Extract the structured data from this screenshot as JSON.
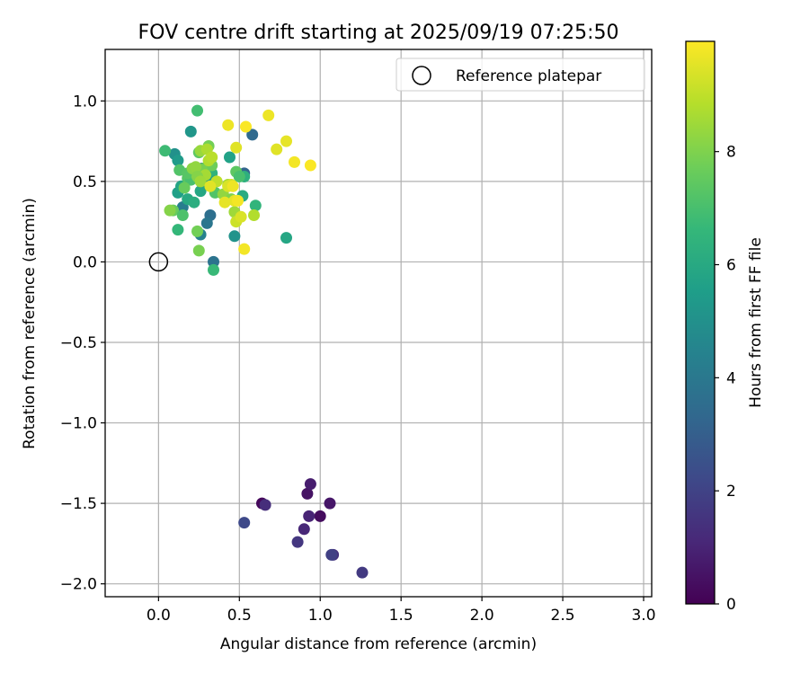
{
  "chart_data": {
    "type": "scatter",
    "title": "FOV centre drift starting at 2025/09/19 07:25:50",
    "xlabel": "Angular distance from reference (arcmin)",
    "ylabel": "Rotation from reference (arcmin)",
    "xlim": [
      -0.33,
      3.05
    ],
    "ylim": [
      -2.08,
      1.32
    ],
    "xticks": [
      0.0,
      0.5,
      1.0,
      1.5,
      2.0,
      2.5,
      3.0
    ],
    "xtick_labels": [
      "0.0",
      "0.5",
      "1.0",
      "1.5",
      "2.0",
      "2.5",
      "3.0"
    ],
    "yticks": [
      -2.0,
      -1.5,
      -1.0,
      -0.5,
      0.0,
      0.5,
      1.0
    ],
    "ytick_labels": [
      "−2.0",
      "−1.5",
      "−1.0",
      "−0.5",
      "0.0",
      "0.5",
      "1.0"
    ],
    "grid": true,
    "legend": {
      "location": "upper right",
      "entries": [
        "Reference platepar"
      ]
    },
    "reference_point": {
      "x": 0.0,
      "y": 0.0,
      "label": "Reference platepar",
      "marker": "open-circle"
    },
    "colorbar": {
      "label": "Hours from first FF file",
      "colormap": "viridis",
      "range": [
        0,
        9.95
      ],
      "ticks": [
        0,
        2,
        4,
        6,
        8
      ],
      "tick_labels": [
        "0",
        "2",
        "4",
        "6",
        "8"
      ],
      "colors": [
        "#440154",
        "#482878",
        "#3e4989",
        "#31688e",
        "#26828e",
        "#1f9e89",
        "#35b779",
        "#6ece58",
        "#b5de2b",
        "#fde725"
      ]
    },
    "series": [
      {
        "name": "FOV centre drift",
        "x": [
          0.64,
          0.92,
          0.94,
          1.0,
          1.06,
          0.93,
          0.66,
          0.9,
          0.86,
          1.08,
          1.07,
          1.26,
          0.53,
          0.34,
          0.32,
          0.58,
          0.53,
          0.27,
          0.3,
          0.26,
          0.15,
          0.1,
          0.12,
          0.12,
          0.14,
          0.2,
          0.18,
          0.22,
          0.26,
          0.29,
          0.33,
          0.35,
          0.44,
          0.47,
          0.52,
          0.53,
          0.6,
          0.79,
          0.04,
          0.09,
          0.13,
          0.15,
          0.18,
          0.2,
          0.24,
          0.25,
          0.28,
          0.31,
          0.33,
          0.34,
          0.27,
          0.07,
          0.16,
          0.25,
          0.35,
          0.4,
          0.45,
          0.48,
          0.5,
          0.47,
          0.12,
          0.18,
          0.21,
          0.24,
          0.26,
          0.29,
          0.3,
          0.31,
          0.33,
          0.36,
          0.23,
          0.24,
          0.43,
          0.59,
          0.48,
          0.26,
          0.41,
          0.43,
          0.48,
          0.51,
          0.45,
          0.47,
          0.49,
          0.54,
          0.68,
          0.73,
          0.79,
          0.84,
          0.94,
          0.53,
          0.32,
          0.43,
          0.46
        ],
        "y": [
          -1.5,
          -1.44,
          -1.38,
          -1.58,
          -1.5,
          -1.58,
          -1.51,
          -1.66,
          -1.74,
          -1.82,
          -1.82,
          -1.93,
          -1.62,
          0.0,
          0.29,
          0.79,
          0.55,
          0.58,
          0.24,
          0.17,
          0.34,
          0.67,
          0.63,
          0.43,
          0.47,
          0.81,
          0.39,
          0.37,
          0.44,
          0.5,
          0.55,
          0.5,
          0.65,
          0.16,
          0.41,
          0.53,
          0.35,
          0.15,
          0.69,
          0.32,
          0.57,
          0.29,
          0.52,
          0.51,
          0.94,
          0.68,
          0.58,
          0.72,
          0.6,
          -0.05,
          0.57,
          0.32,
          0.46,
          0.07,
          0.43,
          0.42,
          0.39,
          0.56,
          0.53,
          0.31,
          0.2,
          0.55,
          0.58,
          0.19,
          0.69,
          0.54,
          0.7,
          0.63,
          0.65,
          0.5,
          0.59,
          0.53,
          0.48,
          0.29,
          0.25,
          0.5,
          0.37,
          0.85,
          0.71,
          0.28,
          0.48,
          0.38,
          0.38,
          0.84,
          0.91,
          0.7,
          0.75,
          0.62,
          0.6,
          0.08,
          0.47,
          0.47,
          0.47
        ],
        "hours": [
          0.2,
          0.5,
          0.8,
          0.3,
          0.6,
          1.0,
          1.3,
          1.1,
          1.6,
          1.4,
          1.9,
          1.7,
          2.2,
          3.8,
          3.6,
          3.4,
          3.2,
          3.0,
          3.9,
          4.4,
          4.2,
          5.0,
          5.4,
          5.6,
          5.8,
          5.2,
          6.0,
          6.2,
          5.9,
          5.3,
          6.4,
          5.5,
          5.7,
          5.1,
          6.1,
          6.3,
          6.5,
          5.9,
          6.8,
          7.6,
          7.2,
          7.1,
          7.3,
          7.0,
          6.9,
          7.4,
          7.5,
          7.8,
          7.7,
          6.7,
          7.9,
          8.1,
          7.6,
          7.9,
          7.2,
          8.3,
          8.0,
          7.4,
          7.0,
          8.5,
          6.6,
          7.3,
          8.2,
          7.8,
          8.4,
          8.6,
          8.7,
          8.8,
          8.9,
          9.0,
          8.3,
          8.1,
          8.6,
          8.8,
          9.2,
          8.5,
          9.6,
          9.7,
          9.5,
          9.4,
          9.3,
          9.6,
          9.8,
          9.9,
          9.7,
          9.5,
          9.6,
          9.8,
          9.9,
          9.8,
          9.5,
          9.4,
          9.7
        ]
      }
    ]
  }
}
